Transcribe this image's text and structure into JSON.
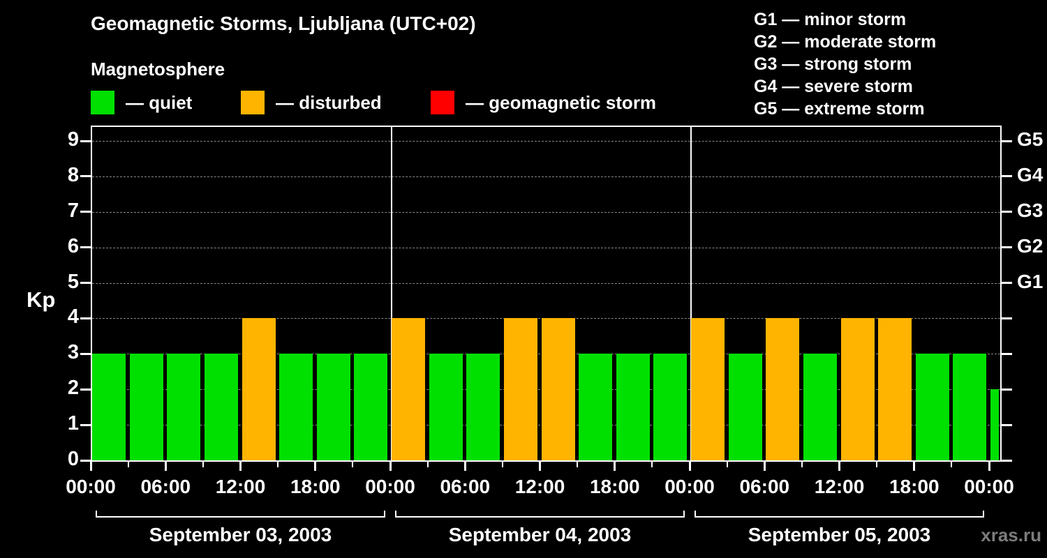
{
  "page": {
    "title": "Geomagnetic Storms, Ljubljana (UTC+02)",
    "subtitle": "Magnetosphere",
    "watermark": "xras.ru"
  },
  "legend": {
    "items": [
      {
        "label": "— quiet",
        "color": "#00e000"
      },
      {
        "label": "— disturbed",
        "color": "#ffb400"
      },
      {
        "label": "— geomagnetic storm",
        "color": "#ff0000"
      }
    ]
  },
  "g_legend": {
    "items": [
      "G1 — minor storm",
      "G2 — moderate storm",
      "G3 — strong storm",
      "G4 — severe storm",
      "G5 — extreme storm"
    ]
  },
  "chart_data": {
    "type": "bar",
    "title": "Geomagnetic Storms, Ljubljana (UTC+02)",
    "ylabel": "Kp",
    "ylim": [
      0,
      9.4
    ],
    "yticks": [
      0,
      1,
      2,
      3,
      4,
      5,
      6,
      7,
      8,
      9
    ],
    "right_axis": [
      {
        "value": 5,
        "label": "G1"
      },
      {
        "value": 6,
        "label": "G2"
      },
      {
        "value": 7,
        "label": "G3"
      },
      {
        "value": 8,
        "label": "G4"
      },
      {
        "value": 9,
        "label": "G5"
      }
    ],
    "interval_hours": 3,
    "x_major_tick_hours": 6,
    "x_tick_labels": [
      "00:00",
      "06:00",
      "12:00",
      "18:00"
    ],
    "final_tick_label": "00:00",
    "grid": "dashed-horizontal",
    "legend_position": "top",
    "colors": {
      "quiet": "#00e000",
      "disturbed": "#ffb400",
      "storm": "#ff0000",
      "background": "#000000",
      "axis": "#ffffff",
      "gridline": "#8a8a8a"
    },
    "color_rules": {
      "quiet_max_kp": 3,
      "disturbed_kp": 4,
      "storm_min_kp": 5
    },
    "days": [
      {
        "date": "September 03, 2003",
        "kp_values": [
          3,
          3,
          3,
          3,
          4,
          3,
          3,
          3
        ]
      },
      {
        "date": "September 04, 2003",
        "kp_values": [
          4,
          3,
          3,
          4,
          4,
          3,
          3,
          3
        ]
      },
      {
        "date": "September 05, 2003",
        "kp_values": [
          4,
          3,
          4,
          3,
          4,
          4,
          3,
          3
        ]
      }
    ],
    "next_day_partial": {
      "kp": 2
    }
  }
}
